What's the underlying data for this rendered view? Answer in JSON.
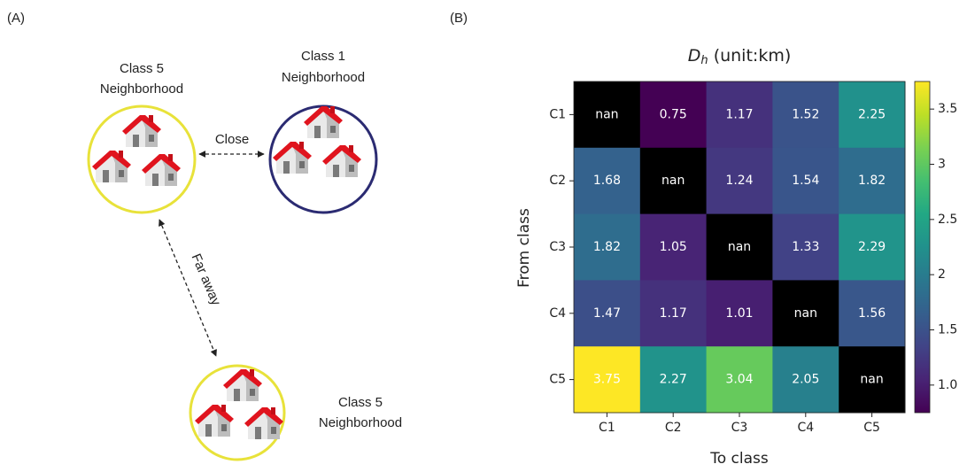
{
  "panel_a": {
    "label": "(A)",
    "nodes": [
      {
        "title": "Class 5",
        "subtitle": "Neighborhood"
      },
      {
        "title": "Class 1",
        "subtitle": "Neighborhood"
      },
      {
        "title": "Class 5",
        "subtitle": "Neighborhood"
      }
    ],
    "edges": [
      {
        "label": "Close"
      },
      {
        "label": "Far away"
      }
    ]
  },
  "chart_data": {
    "type": "heatmap",
    "panel_label": "(B)",
    "title_symbol": "D",
    "title_subscript": "h",
    "title_text": "(unit:km)",
    "x_label": "To class",
    "y_label": "From class",
    "x_categories": [
      "C1",
      "C2",
      "C3",
      "C4",
      "C5"
    ],
    "y_categories": [
      "C1",
      "C2",
      "C3",
      "C4",
      "C5"
    ],
    "values": [
      [
        null,
        0.75,
        1.17,
        1.52,
        2.25
      ],
      [
        1.68,
        null,
        1.24,
        1.54,
        1.82
      ],
      [
        1.82,
        1.05,
        null,
        1.33,
        2.29
      ],
      [
        1.47,
        1.17,
        1.01,
        null,
        1.56
      ],
      [
        3.75,
        2.27,
        3.04,
        2.05,
        null
      ]
    ],
    "value_labels": [
      [
        "nan",
        "0.75",
        "1.17",
        "1.52",
        "2.25"
      ],
      [
        "1.68",
        "nan",
        "1.24",
        "1.54",
        "1.82"
      ],
      [
        "1.82",
        "1.05",
        "nan",
        "1.33",
        "2.29"
      ],
      [
        "1.47",
        "1.17",
        "1.01",
        "nan",
        "1.56"
      ],
      [
        "3.75",
        "2.27",
        "3.04",
        "2.05",
        "nan"
      ]
    ],
    "colormap": "viridis",
    "nan_color": "#000000",
    "clim": [
      0.75,
      3.75
    ],
    "cticks": [
      {
        "value": 1.0,
        "label": "1.0"
      },
      1.5,
      2.0,
      2.5,
      3.0,
      3.5
    ]
  }
}
